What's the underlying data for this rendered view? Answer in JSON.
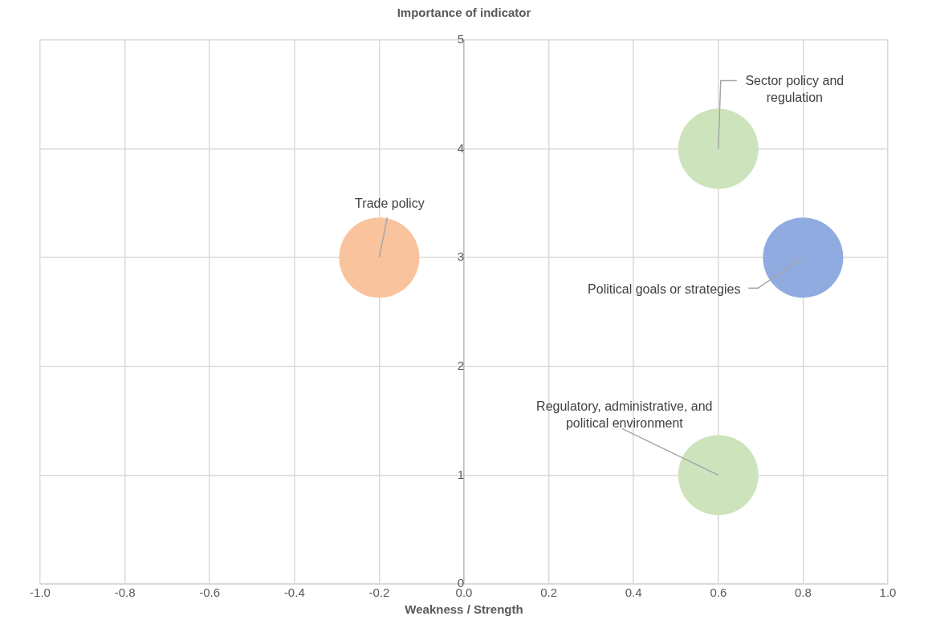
{
  "chart_data": {
    "type": "bubble",
    "ylabel": "Importance of indicator",
    "xlabel": "Weakness / Strength",
    "series": [
      {
        "name": "Trade policy",
        "color": "#f8c39d",
        "x": [
          -0.2
        ],
        "values": [
          3
        ],
        "sizes": [
          1
        ]
      },
      {
        "name": "Sector policy and regulation",
        "color": "#cce3bb",
        "x": [
          0.6
        ],
        "values": [
          4
        ],
        "sizes": [
          1
        ]
      },
      {
        "name": "Political goals or strategies",
        "color": "#8fabe0",
        "x": [
          0.8
        ],
        "values": [
          3
        ],
        "sizes": [
          1
        ]
      },
      {
        "name": "Regulatory, administrative, and political environment",
        "color": "#cce3bb",
        "x": [
          0.6
        ],
        "values": [
          1
        ],
        "sizes": [
          1
        ]
      }
    ],
    "xlim": [
      -1,
      1
    ],
    "xticks": [
      {
        "value": -1,
        "label": "-1.0"
      },
      {
        "value": -0.8,
        "label": "-0.8"
      },
      {
        "value": -0.6,
        "label": "-0.6"
      },
      {
        "value": -0.4,
        "label": "-0.4"
      },
      {
        "value": -0.2,
        "label": "-0.2"
      },
      {
        "value": 0,
        "label": "0.0"
      },
      {
        "value": 0.2,
        "label": "0.2"
      },
      {
        "value": 0.4,
        "label": "0.4"
      },
      {
        "value": 0.6,
        "label": "0.6"
      },
      {
        "value": 0.8,
        "label": "0.8"
      },
      {
        "value": 1,
        "label": "1.0"
      }
    ],
    "ylim": [
      0,
      5
    ],
    "yticks": [
      0,
      1,
      2,
      3,
      4,
      5
    ],
    "grid": true,
    "legend": false
  }
}
